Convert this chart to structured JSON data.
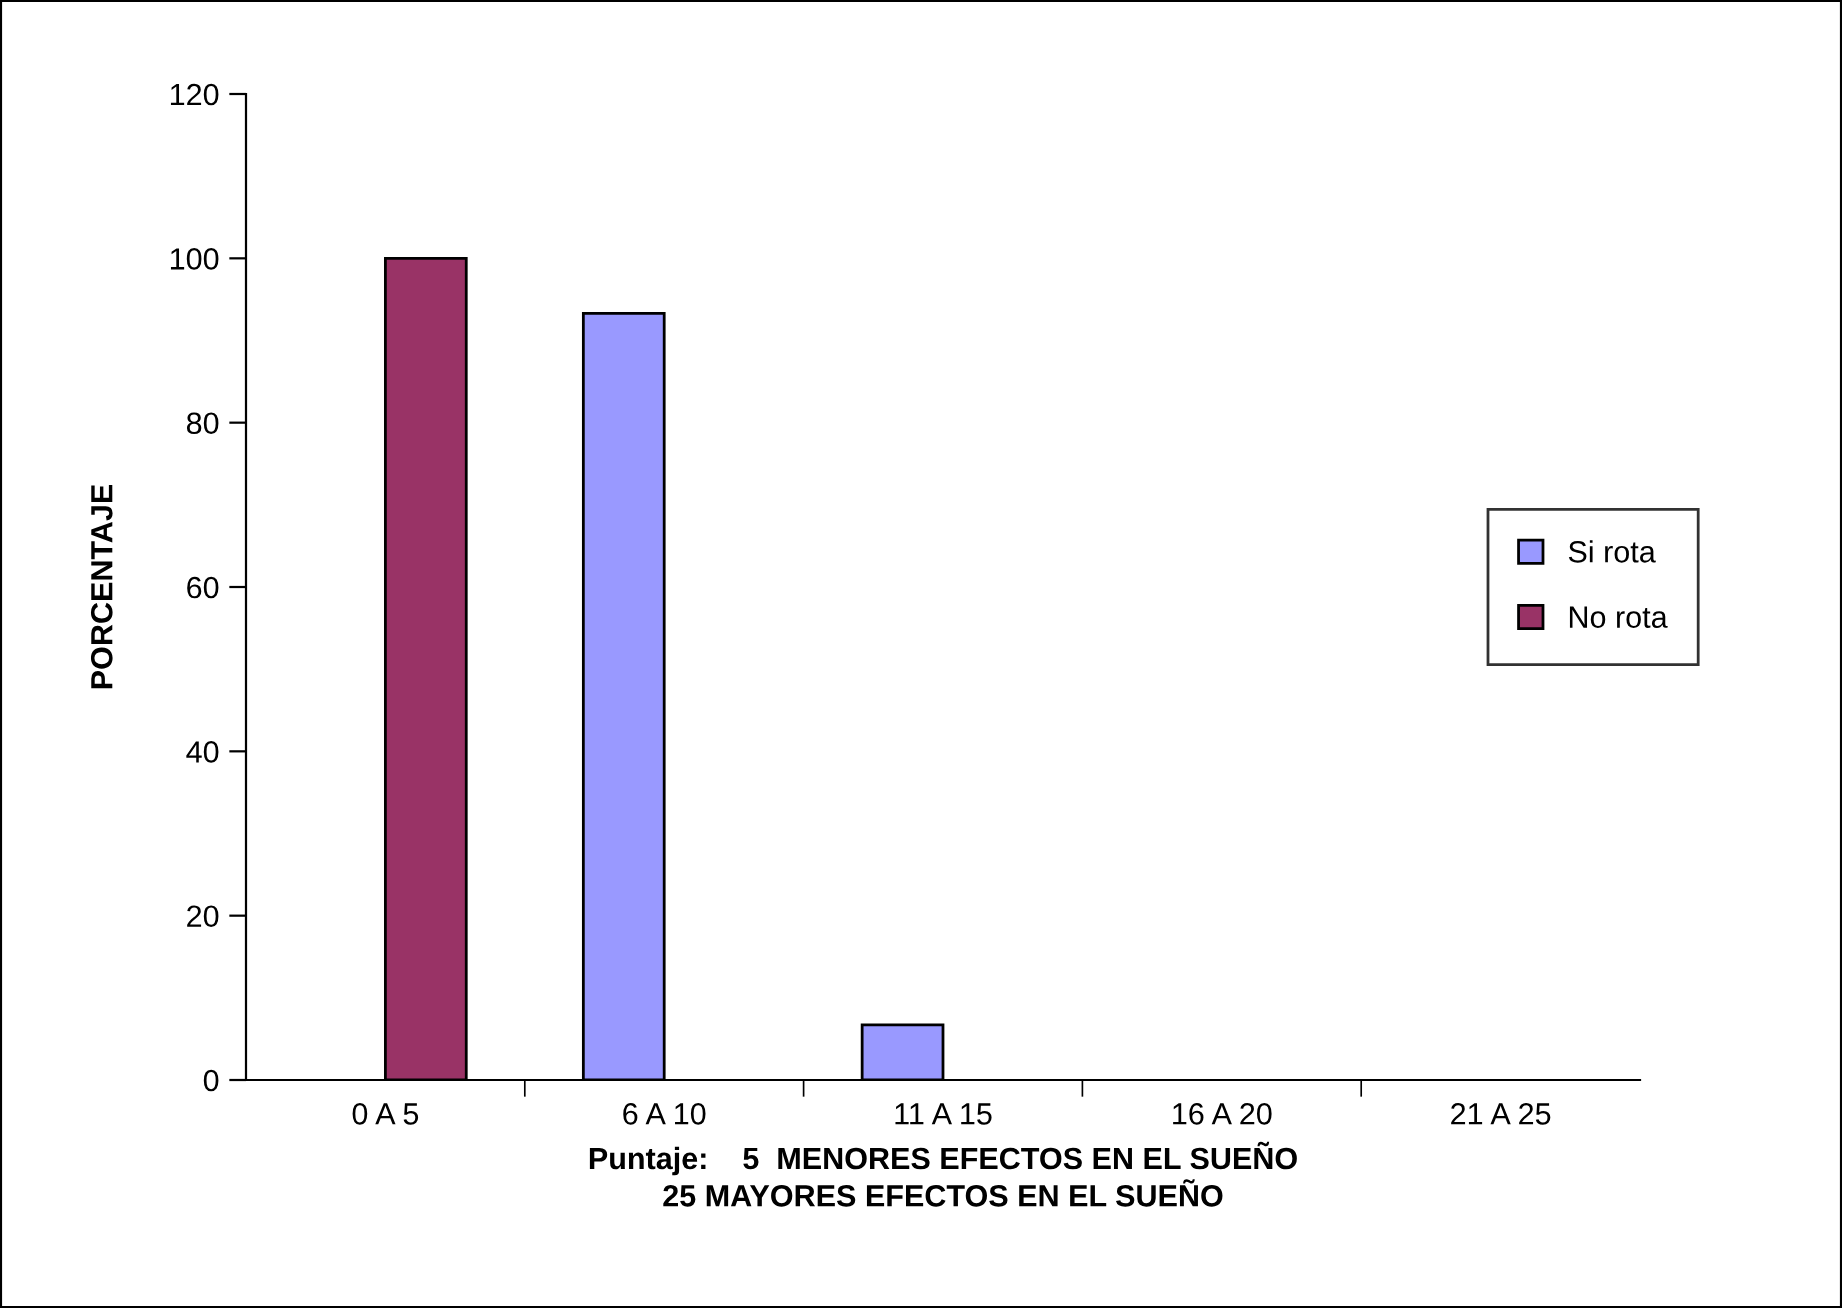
{
  "chart_data": {
    "type": "bar",
    "xlabel": "Puntaje:    5  MENORES EFECTOS EN EL SUEÑO\n25 MAYORES EFECTOS EN EL SUEÑO",
    "ylabel": "PORCENTAJE",
    "categories": [
      "0 A 5",
      "6 A 10",
      "11 A 15",
      "16 A 20",
      "21 A 25"
    ],
    "series": [
      {
        "name": "Si rota",
        "color": "#9999ff",
        "values": [
          null,
          93.3,
          6.7,
          null,
          null
        ]
      },
      {
        "name": "No rota",
        "color": "#993366",
        "values": [
          100,
          null,
          null,
          null,
          null
        ]
      }
    ],
    "ylim": [
      0,
      120
    ],
    "yticks": [
      0,
      20,
      40,
      60,
      80,
      100,
      120
    ],
    "grid": false,
    "legend": "right"
  }
}
